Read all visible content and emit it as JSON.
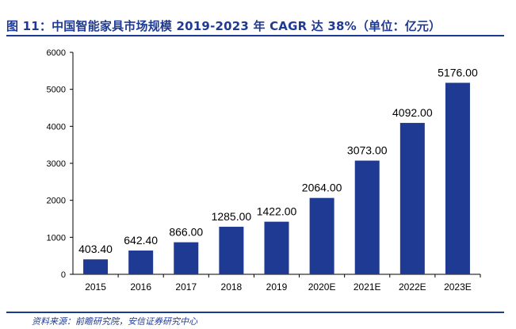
{
  "header": {
    "title": "图 11：中国智能家具市场规模 2019-2023 年 CAGR 达 38%（单位：亿元）"
  },
  "footer": {
    "source": "资料来源：前瞻研究院，安信证券研究中心"
  },
  "chart_data": {
    "type": "bar",
    "categories": [
      "2015",
      "2016",
      "2017",
      "2018",
      "2019",
      "2020E",
      "2021E",
      "2022E",
      "2023E"
    ],
    "values": [
      403.4,
      642.4,
      866.0,
      1285.0,
      1422.0,
      2064.0,
      3073.0,
      4092.0,
      5176.0
    ],
    "value_labels": [
      "403.40",
      "642.40",
      "866.00",
      "1285.00",
      "1422.00",
      "2064.00",
      "3073.00",
      "4092.00",
      "5176.00"
    ],
    "yticks": [
      "0",
      "1000",
      "2000",
      "3000",
      "4000",
      "5000",
      "6000"
    ],
    "ylim": [
      0,
      6000
    ],
    "bar_color": "#1f3a93",
    "grid": false,
    "legend": "none"
  }
}
